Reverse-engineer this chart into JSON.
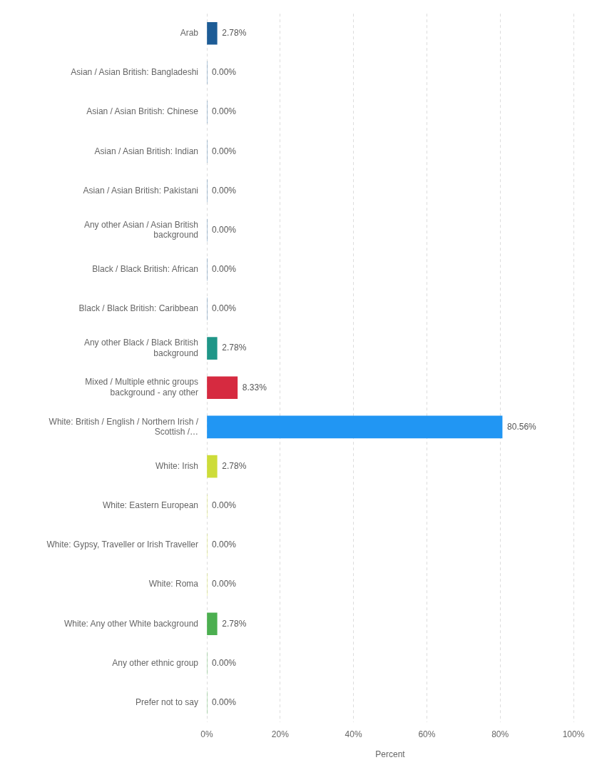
{
  "chart_data": {
    "type": "bar",
    "orientation": "horizontal",
    "xlabel": "Percent",
    "categories": [
      "Arab",
      "Asian / Asian British: Bangladeshi",
      "Asian / Asian British: Chinese",
      "Asian / Asian British: Indian",
      "Asian / Asian British: Pakistani",
      "Any other Asian / Asian British background",
      "Black / Black British: African",
      "Black / Black British: Caribbean",
      "Any other Black / Black British background",
      "Mixed / Multiple ethnic groups background - any other",
      "White: British / English / Northern Irish / Scottish /…",
      "White: Irish",
      "White: Eastern European",
      "White: Gypsy, Traveller or Irish Traveller",
      "White: Roma",
      "White: Any other White background",
      "Any other ethnic group",
      "Prefer not to say"
    ],
    "values": [
      2.78,
      0,
      0,
      0,
      0,
      0,
      0,
      0,
      2.78,
      8.33,
      80.56,
      2.78,
      0,
      0,
      0,
      2.78,
      0,
      0
    ],
    "colors": [
      "#1d5c96",
      "#1d5c96",
      "#1d5c96",
      "#1d5c96",
      "#1d5c96",
      "#1d5c96",
      "#1d5c96",
      "#1d5c96",
      "#1f9688",
      "#d62a40",
      "#2196f3",
      "#cddc39",
      "#cddc39",
      "#cddc39",
      "#cddc39",
      "#4caf50",
      "#4caf50",
      "#4caf50"
    ],
    "value_labels": [
      "2.78%",
      "0.00%",
      "0.00%",
      "0.00%",
      "0.00%",
      "0.00%",
      "0.00%",
      "0.00%",
      "2.78%",
      "8.33%",
      "80.56%",
      "2.78%",
      "0.00%",
      "0.00%",
      "0.00%",
      "2.78%",
      "0.00%",
      "0.00%"
    ],
    "xlim": [
      0,
      100
    ],
    "xticks": [
      {
        "value": 0,
        "label": "0%"
      },
      {
        "value": 20,
        "label": "20%"
      },
      {
        "value": 40,
        "label": "40%"
      },
      {
        "value": 60,
        "label": "60%"
      },
      {
        "value": 80,
        "label": "80%"
      },
      {
        "value": 100,
        "label": "100%"
      }
    ],
    "grid": "x",
    "legend": false
  }
}
